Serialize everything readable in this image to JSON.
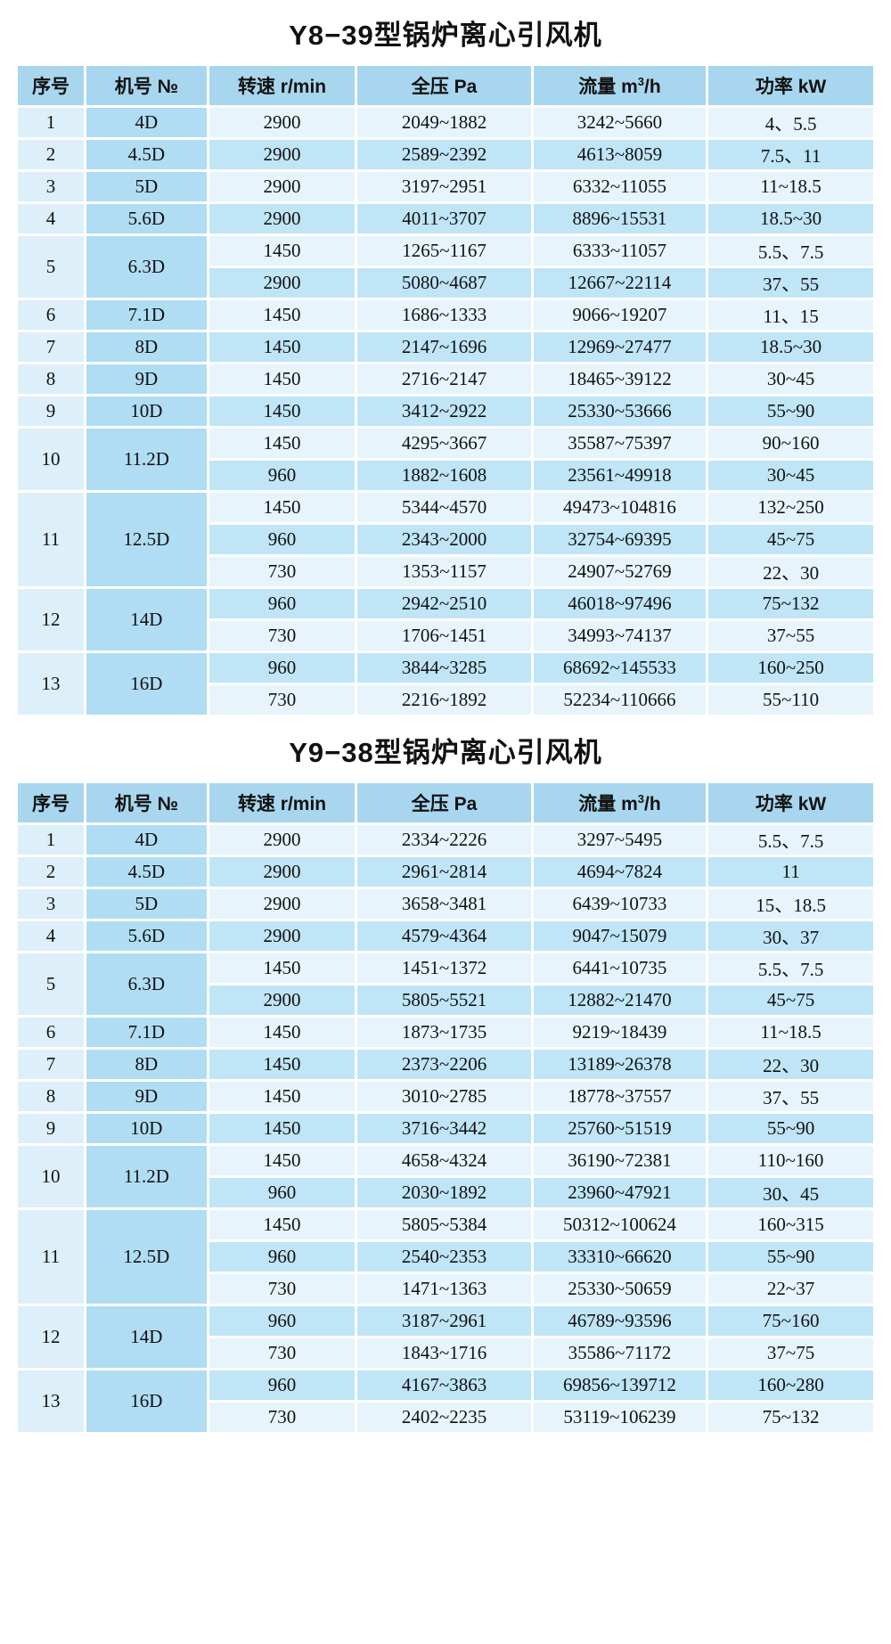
{
  "colors": {
    "header_bg": "#a8d6ee",
    "no_col_bg": "#ddeff9",
    "model_col_bg": "#b0ddf3",
    "row_light": "#e7f4fc",
    "row_dark": "#bfe5f7",
    "grid": "#ffffff",
    "text": "#111111"
  },
  "tables": [
    {
      "title": "Y8−39型锅炉离心引风机",
      "headers": {
        "no": "序号",
        "model": "机号 №",
        "speed": "转速 r/min",
        "pressure": "全压 Pa",
        "flow_prefix": "流量 m",
        "flow_sup": "3",
        "flow_suffix": "/h",
        "power": "功率 kW"
      },
      "rows": [
        {
          "no": "1",
          "model": "4D",
          "subs": [
            {
              "speed": "2900",
              "pressure": "2049~1882",
              "flow": "3242~5660",
              "power": "4、5.5"
            }
          ]
        },
        {
          "no": "2",
          "model": "4.5D",
          "subs": [
            {
              "speed": "2900",
              "pressure": "2589~2392",
              "flow": "4613~8059",
              "power": "7.5、11"
            }
          ]
        },
        {
          "no": "3",
          "model": "5D",
          "subs": [
            {
              "speed": "2900",
              "pressure": "3197~2951",
              "flow": "6332~11055",
              "power": "11~18.5"
            }
          ]
        },
        {
          "no": "4",
          "model": "5.6D",
          "subs": [
            {
              "speed": "2900",
              "pressure": "4011~3707",
              "flow": "8896~15531",
              "power": "18.5~30"
            }
          ]
        },
        {
          "no": "5",
          "model": "6.3D",
          "subs": [
            {
              "speed": "1450",
              "pressure": "1265~1167",
              "flow": "6333~11057",
              "power": "5.5、7.5"
            },
            {
              "speed": "2900",
              "pressure": "5080~4687",
              "flow": "12667~22114",
              "power": "37、55"
            }
          ]
        },
        {
          "no": "6",
          "model": "7.1D",
          "subs": [
            {
              "speed": "1450",
              "pressure": "1686~1333",
              "flow": "9066~19207",
              "power": "11、15"
            }
          ]
        },
        {
          "no": "7",
          "model": "8D",
          "subs": [
            {
              "speed": "1450",
              "pressure": "2147~1696",
              "flow": "12969~27477",
              "power": "18.5~30"
            }
          ]
        },
        {
          "no": "8",
          "model": "9D",
          "subs": [
            {
              "speed": "1450",
              "pressure": "2716~2147",
              "flow": "18465~39122",
              "power": "30~45"
            }
          ]
        },
        {
          "no": "9",
          "model": "10D",
          "subs": [
            {
              "speed": "1450",
              "pressure": "3412~2922",
              "flow": "25330~53666",
              "power": "55~90"
            }
          ]
        },
        {
          "no": "10",
          "model": "11.2D",
          "subs": [
            {
              "speed": "1450",
              "pressure": "4295~3667",
              "flow": "35587~75397",
              "power": "90~160"
            },
            {
              "speed": "960",
              "pressure": "1882~1608",
              "flow": "23561~49918",
              "power": "30~45"
            }
          ]
        },
        {
          "no": "11",
          "model": "12.5D",
          "subs": [
            {
              "speed": "1450",
              "pressure": "5344~4570",
              "flow": "49473~104816",
              "power": "132~250"
            },
            {
              "speed": "960",
              "pressure": "2343~2000",
              "flow": "32754~69395",
              "power": "45~75"
            },
            {
              "speed": "730",
              "pressure": "1353~1157",
              "flow": "24907~52769",
              "power": "22、30"
            }
          ]
        },
        {
          "no": "12",
          "model": "14D",
          "subs": [
            {
              "speed": "960",
              "pressure": "2942~2510",
              "flow": "46018~97496",
              "power": "75~132"
            },
            {
              "speed": "730",
              "pressure": "1706~1451",
              "flow": "34993~74137",
              "power": "37~55"
            }
          ]
        },
        {
          "no": "13",
          "model": "16D",
          "subs": [
            {
              "speed": "960",
              "pressure": "3844~3285",
              "flow": "68692~145533",
              "power": "160~250"
            },
            {
              "speed": "730",
              "pressure": "2216~1892",
              "flow": "52234~110666",
              "power": "55~110"
            }
          ]
        }
      ]
    },
    {
      "title": "Y9−38型锅炉离心引风机",
      "headers": {
        "no": "序号",
        "model": "机号 №",
        "speed": "转速 r/min",
        "pressure": "全压 Pa",
        "flow_prefix": "流量 m",
        "flow_sup": "3",
        "flow_suffix": "/h",
        "power": "功率 kW"
      },
      "rows": [
        {
          "no": "1",
          "model": "4D",
          "subs": [
            {
              "speed": "2900",
              "pressure": "2334~2226",
              "flow": "3297~5495",
              "power": "5.5、7.5"
            }
          ]
        },
        {
          "no": "2",
          "model": "4.5D",
          "subs": [
            {
              "speed": "2900",
              "pressure": "2961~2814",
              "flow": "4694~7824",
              "power": "11"
            }
          ]
        },
        {
          "no": "3",
          "model": "5D",
          "subs": [
            {
              "speed": "2900",
              "pressure": "3658~3481",
              "flow": "6439~10733",
              "power": "15、18.5"
            }
          ]
        },
        {
          "no": "4",
          "model": "5.6D",
          "subs": [
            {
              "speed": "2900",
              "pressure": "4579~4364",
              "flow": "9047~15079",
              "power": "30、37"
            }
          ]
        },
        {
          "no": "5",
          "model": "6.3D",
          "subs": [
            {
              "speed": "1450",
              "pressure": "1451~1372",
              "flow": "6441~10735",
              "power": "5.5、7.5"
            },
            {
              "speed": "2900",
              "pressure": "5805~5521",
              "flow": "12882~21470",
              "power": "45~75"
            }
          ]
        },
        {
          "no": "6",
          "model": "7.1D",
          "subs": [
            {
              "speed": "1450",
              "pressure": "1873~1735",
              "flow": "9219~18439",
              "power": "11~18.5"
            }
          ]
        },
        {
          "no": "7",
          "model": "8D",
          "subs": [
            {
              "speed": "1450",
              "pressure": "2373~2206",
              "flow": "13189~26378",
              "power": "22、30"
            }
          ]
        },
        {
          "no": "8",
          "model": "9D",
          "subs": [
            {
              "speed": "1450",
              "pressure": "3010~2785",
              "flow": "18778~37557",
              "power": "37、55"
            }
          ]
        },
        {
          "no": "9",
          "model": "10D",
          "subs": [
            {
              "speed": "1450",
              "pressure": "3716~3442",
              "flow": "25760~51519",
              "power": "55~90"
            }
          ]
        },
        {
          "no": "10",
          "model": "11.2D",
          "subs": [
            {
              "speed": "1450",
              "pressure": "4658~4324",
              "flow": "36190~72381",
              "power": "110~160"
            },
            {
              "speed": "960",
              "pressure": "2030~1892",
              "flow": "23960~47921",
              "power": "30、45"
            }
          ]
        },
        {
          "no": "11",
          "model": "12.5D",
          "subs": [
            {
              "speed": "1450",
              "pressure": "5805~5384",
              "flow": "50312~100624",
              "power": "160~315"
            },
            {
              "speed": "960",
              "pressure": "2540~2353",
              "flow": "33310~66620",
              "power": "55~90"
            },
            {
              "speed": "730",
              "pressure": "1471~1363",
              "flow": "25330~50659",
              "power": "22~37"
            }
          ]
        },
        {
          "no": "12",
          "model": "14D",
          "subs": [
            {
              "speed": "960",
              "pressure": "3187~2961",
              "flow": "46789~93596",
              "power": "75~160"
            },
            {
              "speed": "730",
              "pressure": "1843~1716",
              "flow": "35586~71172",
              "power": "37~75"
            }
          ]
        },
        {
          "no": "13",
          "model": "16D",
          "subs": [
            {
              "speed": "960",
              "pressure": "4167~3863",
              "flow": "69856~139712",
              "power": "160~280"
            },
            {
              "speed": "730",
              "pressure": "2402~2235",
              "flow": "53119~106239",
              "power": "75~132"
            }
          ]
        }
      ]
    }
  ]
}
